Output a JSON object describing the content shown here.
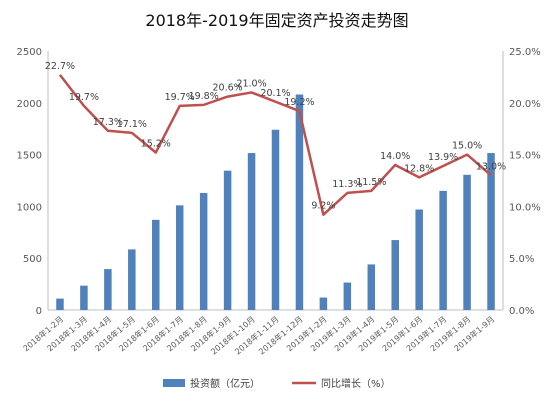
{
  "chart_data": {
    "type": "bar",
    "title": "2018年-2019年固定资产投资走势图",
    "categories": [
      "2018年1-2月",
      "2018年1-3月",
      "2018年1-4月",
      "2018年1-5月",
      "2018年1-6月",
      "2018年1-7月",
      "2018年1-8月",
      "2018年1-9月",
      "2018年1-10月",
      "2018年1-11月",
      "2018年1-12月",
      "2019年1-2月",
      "2019年1-3月",
      "2019年1-4月",
      "2019年1-5月",
      "2019年1-6月",
      "2019年1-7月",
      "2019年1-8月",
      "2019年1-9月"
    ],
    "series": [
      {
        "name": "投资额（亿元）",
        "type": "bar",
        "axis": "left",
        "color": "#4f81bd",
        "values": [
          110,
          235,
          395,
          585,
          870,
          1010,
          1130,
          1345,
          1515,
          1740,
          2080,
          120,
          265,
          440,
          675,
          970,
          1150,
          1305,
          1515
        ]
      },
      {
        "name": "同比增长（%）",
        "type": "line",
        "axis": "right",
        "color": "#c0504d",
        "values": [
          22.7,
          19.7,
          17.3,
          17.1,
          15.2,
          19.7,
          19.8,
          20.6,
          21.0,
          20.1,
          19.2,
          9.2,
          11.3,
          11.5,
          14.0,
          12.8,
          13.9,
          15.0,
          13.0
        ],
        "labels": [
          "22.7%",
          "19.7%",
          "17.3%",
          "17.1%",
          "15.2%",
          "19.7%",
          "19.8%",
          "20.6%",
          "21.0%",
          "20.1%",
          "19.2%",
          "9.2%",
          "11.3%",
          "11.5%",
          "14.0%",
          "12.8%",
          "13.9%",
          "15.0%",
          "13.0%"
        ]
      }
    ],
    "y_left": {
      "min": 0,
      "max": 2500,
      "ticks": [
        "0",
        "500",
        "1000",
        "1500",
        "2000",
        "2500"
      ]
    },
    "y_right": {
      "min": 0,
      "max": 25,
      "ticks": [
        "0.0%",
        "5.0%",
        "10.0%",
        "15.0%",
        "20.0%",
        "25.0%"
      ]
    },
    "grid": false,
    "legend": "bottom-center"
  }
}
